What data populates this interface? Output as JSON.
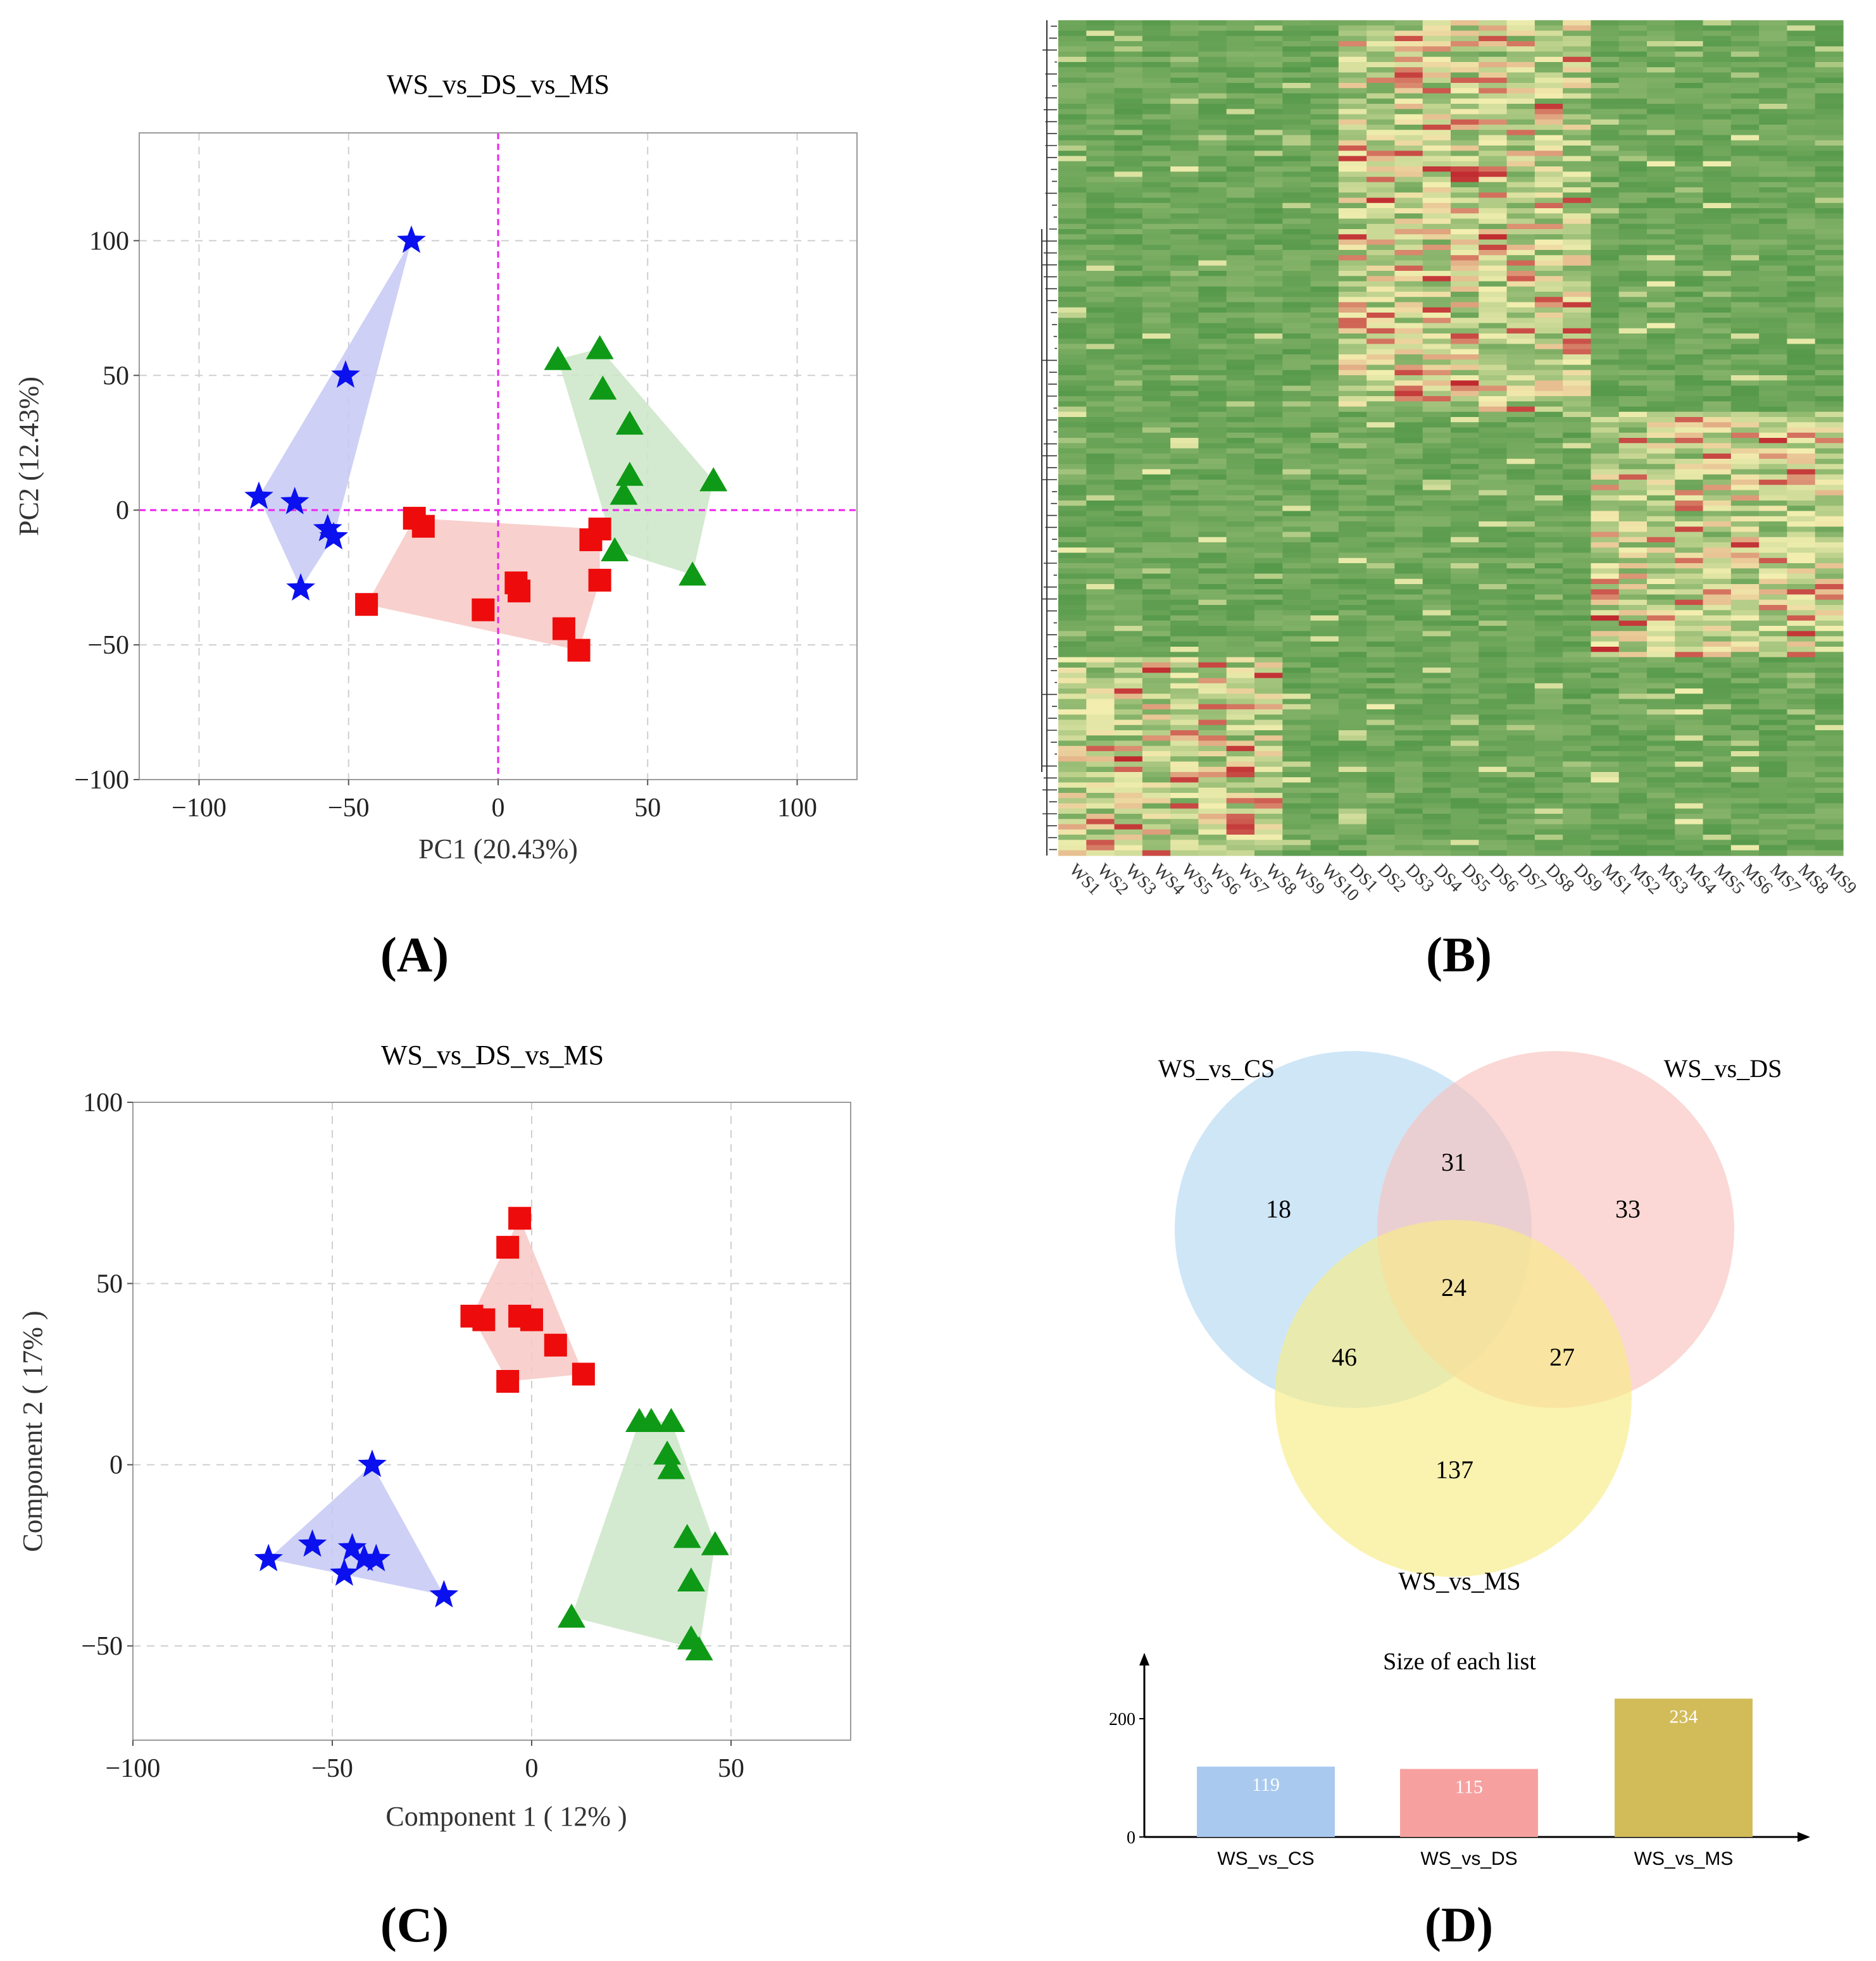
{
  "colors": {
    "ws": "#0a10ee",
    "ds": "#ee0b0b",
    "ms": "#0e9a16",
    "ws_fill": "#c6c8f4",
    "ds_fill": "#f7c8c4",
    "ms_fill": "#cde6c8",
    "refline": "#ee22ee",
    "venn_cs": "#b6d9f3",
    "venn_ds": "#f9c3bf",
    "venn_ms": "#f7ec86",
    "bar_cs": "#a9c9ef",
    "bar_ds": "#f6a1a0",
    "bar_ms": "#d2bc5a"
  },
  "chart_data": [
    {
      "panel_label": "(A)",
      "type": "scatter",
      "title": "WS_vs_DS_vs_MS",
      "xlabel": "PC1 (20.43%)",
      "ylabel": "PC2 (12.43%)",
      "xlim": [
        -120,
        120
      ],
      "ylim": [
        -100,
        140
      ],
      "xticks": [
        -100,
        -50,
        0,
        50,
        100
      ],
      "yticks": [
        -100,
        -50,
        0,
        50,
        100
      ],
      "xtick_labels": [
        "−100",
        "−50",
        "0",
        "50",
        "100"
      ],
      "ytick_labels": [
        "−100",
        "−50",
        "0",
        "50",
        "100"
      ],
      "grid": true,
      "reference_lines": {
        "x": 0,
        "y": 0
      },
      "series": [
        {
          "name": "WS",
          "marker": "star",
          "color_key": "ws",
          "points": [
            [
              -29,
              100
            ],
            [
              -51,
              50
            ],
            [
              -80,
              5
            ],
            [
              -68,
              3
            ],
            [
              -57,
              -7
            ],
            [
              -55,
              -10
            ],
            [
              -66,
              -29
            ]
          ]
        },
        {
          "name": "DS",
          "marker": "square",
          "color_key": "ds",
          "points": [
            [
              -28,
              -3
            ],
            [
              -25,
              -6
            ],
            [
              -44,
              -35
            ],
            [
              -5,
              -37
            ],
            [
              6,
              -27
            ],
            [
              7,
              -30
            ],
            [
              34,
              -7
            ],
            [
              31,
              -11
            ],
            [
              34,
              -26
            ],
            [
              22,
              -44
            ],
            [
              27,
              -52
            ]
          ]
        },
        {
          "name": "MS",
          "marker": "triangle",
          "color_key": "ms",
          "points": [
            [
              20,
              56
            ],
            [
              34,
              60
            ],
            [
              35,
              45
            ],
            [
              44,
              32
            ],
            [
              44,
              13
            ],
            [
              42,
              6
            ],
            [
              39,
              -15
            ],
            [
              65,
              -24
            ],
            [
              72,
              11
            ]
          ]
        }
      ]
    },
    {
      "panel_label": "(B)",
      "type": "heatmap",
      "columns": [
        "WS1",
        "WS2",
        "WS3",
        "WS4",
        "WS5",
        "WS6",
        "WS7",
        "WS8",
        "WS9",
        "WS10",
        "DS1",
        "DS2",
        "DS3",
        "DS4",
        "DS5",
        "DS6",
        "DS7",
        "DS8",
        "DS9",
        "MS1",
        "MS2",
        "MS3",
        "MS4",
        "MS5",
        "MS6",
        "MS7",
        "MS8",
        "MS9"
      ],
      "colormap": [
        "#3e8c3b",
        "#f3efb0",
        "#c0282e"
      ],
      "row_blocks": [
        {
          "name": "DS-high",
          "rows": [
            0.0,
            0.47
          ],
          "high_columns": [
            "DS1",
            "DS2",
            "DS3",
            "DS4",
            "DS5",
            "DS6",
            "DS7",
            "DS8",
            "DS9"
          ]
        },
        {
          "name": "MS-high",
          "rows": [
            0.47,
            0.76
          ],
          "high_columns": [
            "MS1",
            "MS2",
            "MS3",
            "MS4",
            "MS5",
            "MS6",
            "MS7",
            "MS8",
            "MS9"
          ]
        },
        {
          "name": "WS-high",
          "rows": [
            0.76,
            1.0
          ],
          "high_columns": [
            "WS1",
            "WS2",
            "WS3",
            "WS4",
            "WS5",
            "WS6",
            "WS7",
            "WS8"
          ]
        }
      ]
    },
    {
      "panel_label": "(C)",
      "type": "scatter",
      "title": "WS_vs_DS_vs_MS",
      "xlabel": "Component 1 ( 12% )",
      "ylabel": "Component 2 ( 17% )",
      "xlim": [
        -100,
        80
      ],
      "ylim": [
        -76,
        100
      ],
      "xticks": [
        -100,
        -50,
        0,
        50
      ],
      "yticks": [
        -50,
        0,
        50,
        100
      ],
      "xtick_labels": [
        "−100",
        "−50",
        "0",
        "50"
      ],
      "ytick_labels": [
        "−50",
        "0",
        "50",
        "100"
      ],
      "grid": true,
      "series": [
        {
          "name": "WS",
          "marker": "star",
          "color_key": "ws",
          "points": [
            [
              -40,
              0
            ],
            [
              -66,
              -26
            ],
            [
              -55,
              -22
            ],
            [
              -45,
              -23
            ],
            [
              -42,
              -26
            ],
            [
              -39,
              -26
            ],
            [
              -47,
              -30
            ],
            [
              -22,
              -36
            ]
          ]
        },
        {
          "name": "DS",
          "marker": "square",
          "color_key": "ds",
          "points": [
            [
              -3,
              68
            ],
            [
              -6,
              60
            ],
            [
              -15,
              41
            ],
            [
              -12,
              40
            ],
            [
              -3,
              41
            ],
            [
              0,
              40
            ],
            [
              6,
              33
            ],
            [
              13,
              25
            ],
            [
              -6,
              23
            ]
          ]
        },
        {
          "name": "MS",
          "marker": "triangle",
          "color_key": "ms",
          "points": [
            [
              27,
              12
            ],
            [
              30,
              12
            ],
            [
              35,
              12
            ],
            [
              34,
              3
            ],
            [
              35,
              -1
            ],
            [
              39,
              -20
            ],
            [
              46,
              -22
            ],
            [
              40,
              -32
            ],
            [
              10,
              -42
            ],
            [
              40,
              -48
            ],
            [
              42,
              -51
            ]
          ]
        }
      ]
    },
    {
      "panel_label": "(D)",
      "type": "venn",
      "sets": [
        {
          "name": "WS_vs_CS",
          "color_key": "venn_cs"
        },
        {
          "name": "WS_vs_DS",
          "color_key": "venn_ds"
        },
        {
          "name": "WS_vs_MS",
          "color_key": "venn_ms"
        }
      ],
      "regions": {
        "cs_only": "18",
        "ds_only": "33",
        "ms_only": "137",
        "cs_ds": "31",
        "cs_ms": "46",
        "ds_ms": "27",
        "all": "24"
      },
      "bar_chart": {
        "type": "bar",
        "title": "Size of each list",
        "categories": [
          "WS_vs_CS",
          "WS_vs_DS",
          "WS_vs_MS"
        ],
        "values": [
          119,
          115,
          234
        ],
        "color_keys": [
          "bar_cs",
          "bar_ds",
          "bar_ms"
        ],
        "yticks": [
          0,
          200
        ],
        "ylim": [
          0,
          290
        ]
      }
    }
  ]
}
